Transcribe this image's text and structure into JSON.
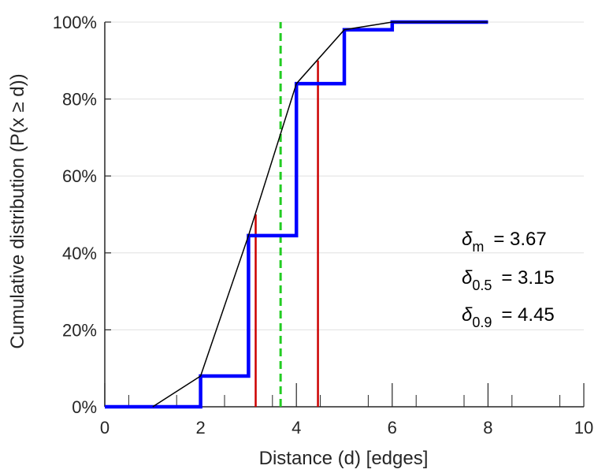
{
  "chart_data": {
    "type": "line",
    "xlabel": "Distance (d) [edges]",
    "ylabel": "Cumulative distribution (P(x ≥ d))",
    "xlim": [
      0,
      10
    ],
    "ylim": [
      0,
      100
    ],
    "x_ticks": [
      "0",
      "2",
      "4",
      "6",
      "8",
      "10"
    ],
    "y_ticks": [
      "0%",
      "20%",
      "40%",
      "60%",
      "80%",
      "100%"
    ],
    "grid": "horizontal",
    "series": [
      {
        "style": "step",
        "color": "#0000ff",
        "x": [
          0,
          1,
          2,
          3,
          4,
          5,
          6,
          7,
          8
        ],
        "y": [
          0,
          0,
          8,
          44.5,
          84,
          98,
          100,
          100,
          100
        ]
      },
      {
        "style": "interpolated",
        "color": "#000000",
        "x": [
          1,
          2,
          3,
          4,
          5,
          6,
          7,
          8
        ],
        "y": [
          0,
          8,
          44.5,
          84,
          98,
          100,
          100,
          100
        ]
      }
    ],
    "vertical_lines": [
      {
        "x": 3.15,
        "y": 50,
        "color": "#cc0000",
        "style": "solid"
      },
      {
        "x": 4.45,
        "y": 90,
        "color": "#cc0000",
        "style": "solid"
      },
      {
        "x": 3.67,
        "y": 100,
        "color": "#22cc22",
        "style": "dashed"
      }
    ],
    "annotations": [
      {
        "symbol": "δ",
        "sub": "m",
        "text": "= 3.67"
      },
      {
        "symbol": "δ",
        "sub": "0.5",
        "text": "= 3.15"
      },
      {
        "symbol": "δ",
        "sub": "0.9",
        "text": "= 4.45"
      }
    ]
  }
}
